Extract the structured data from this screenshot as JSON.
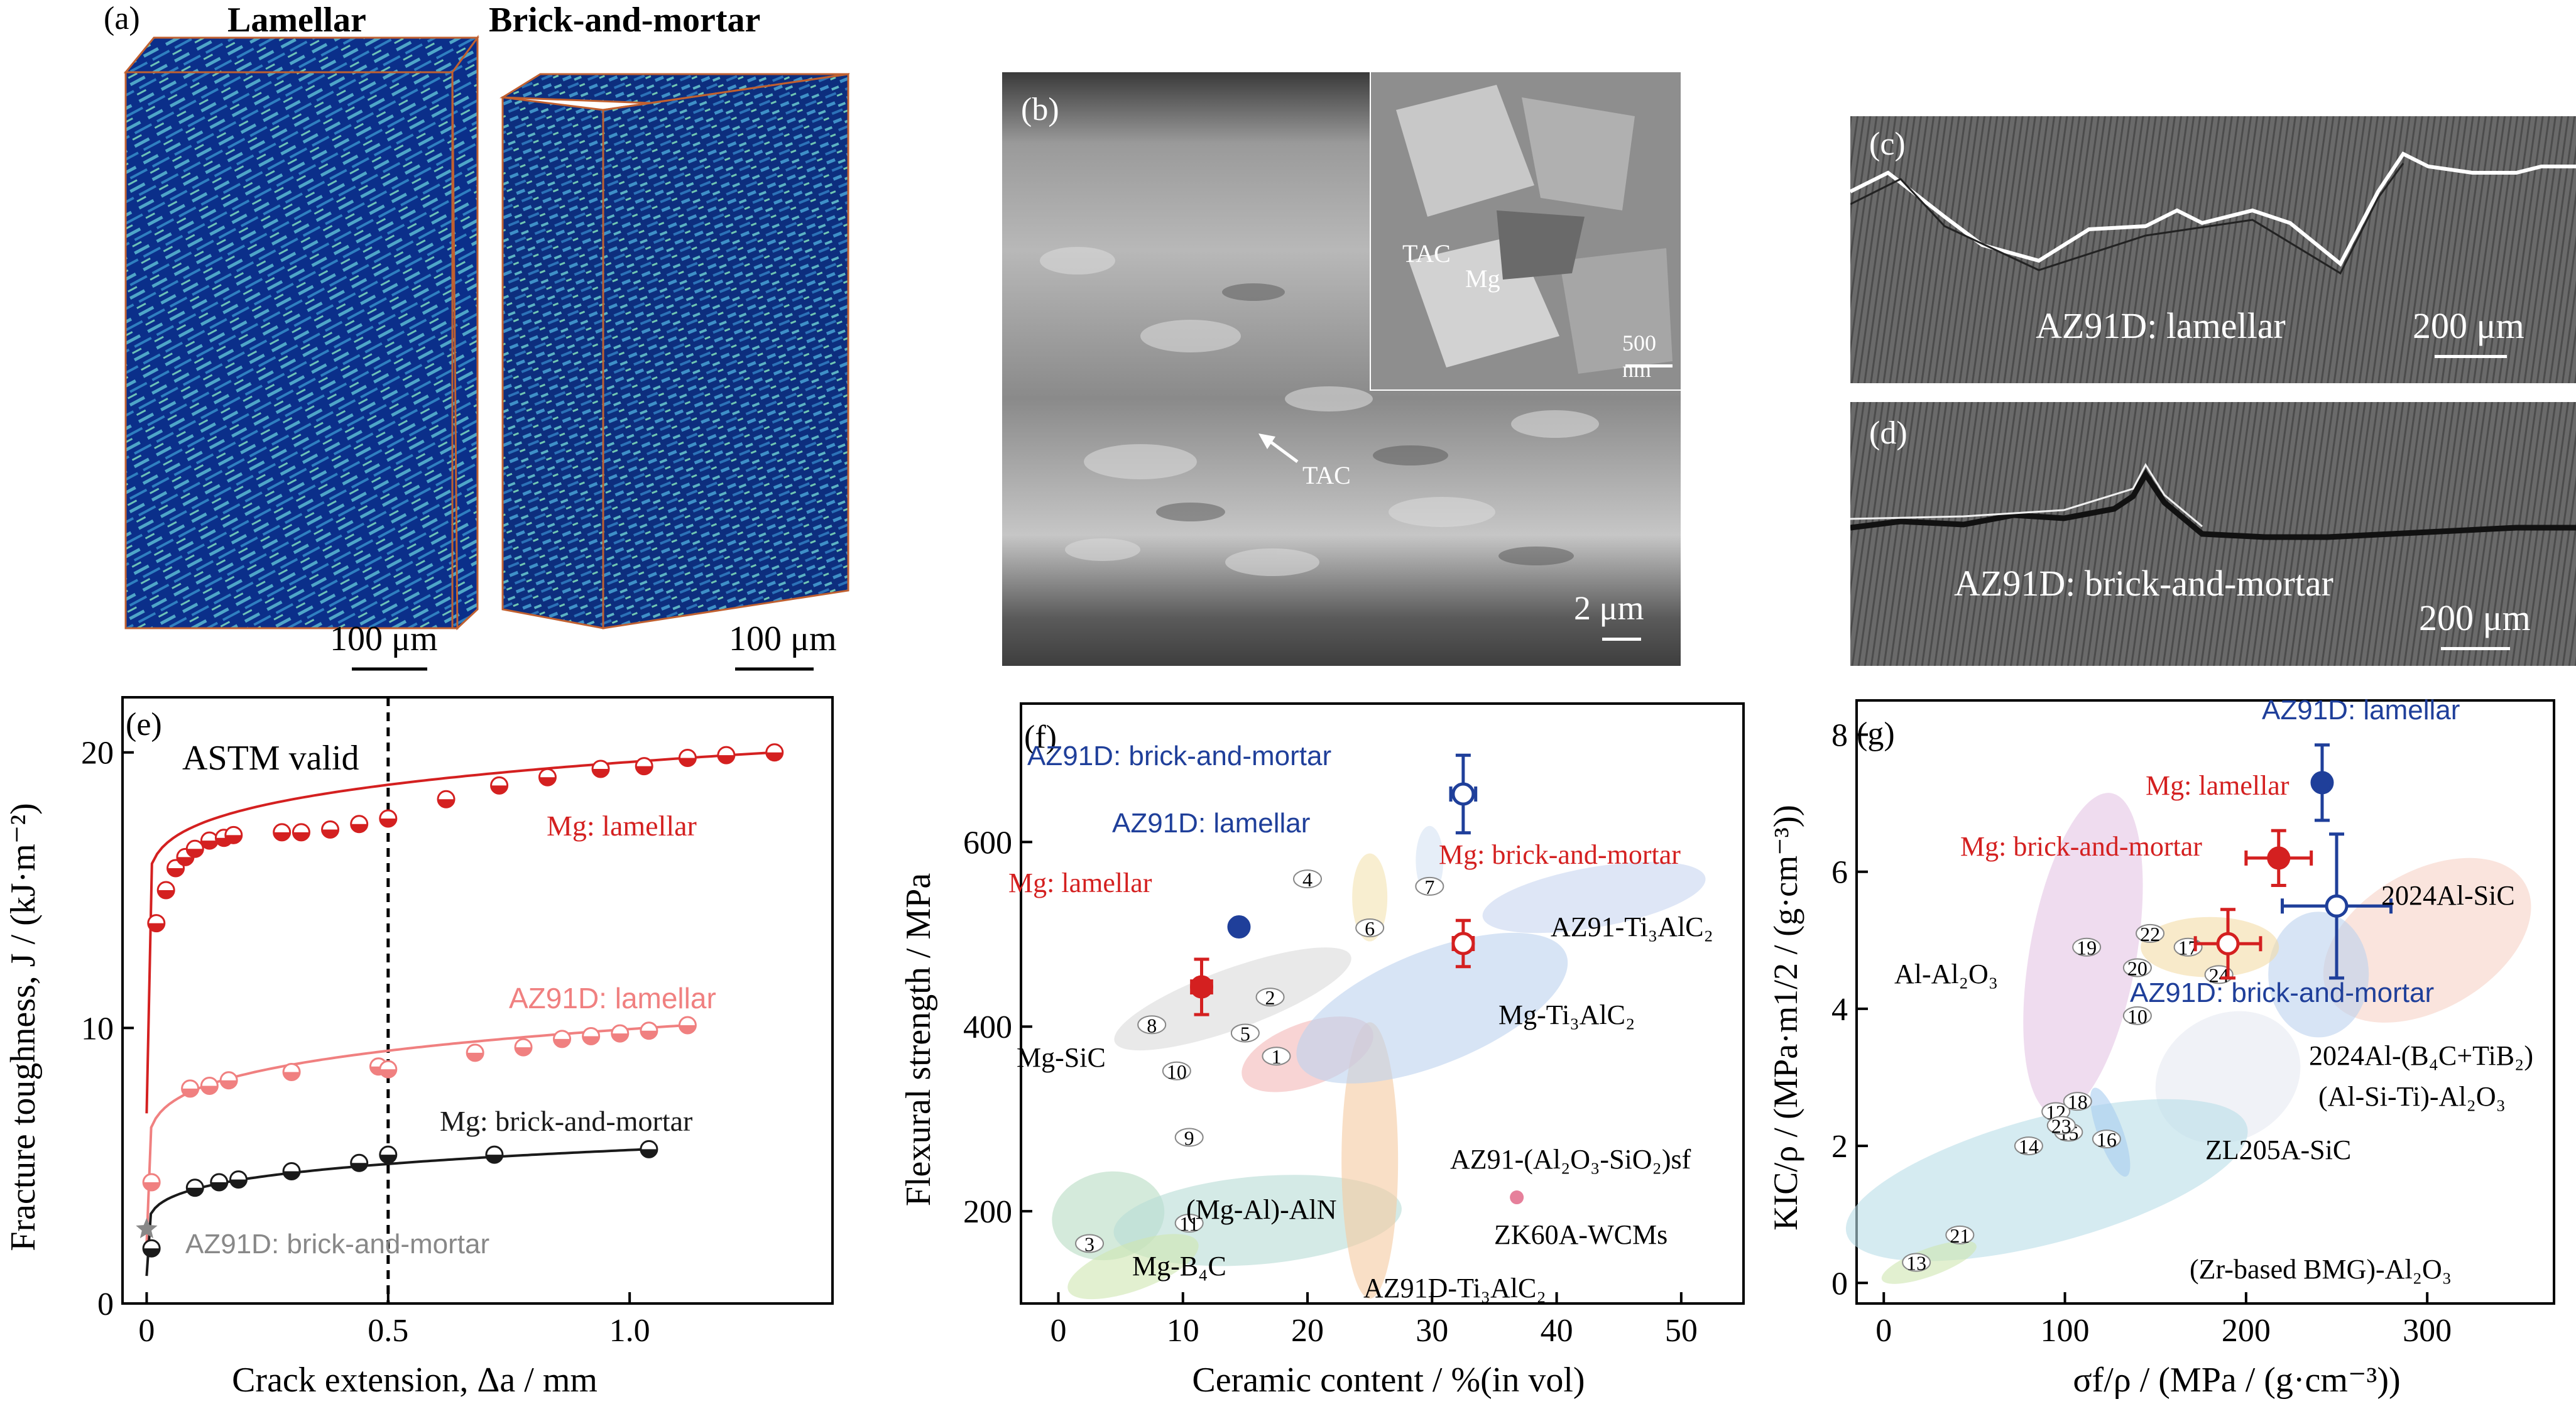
{
  "panel_a": {
    "label": "(a)",
    "left_title": "Lamellar",
    "right_title": "Brick-and-mortar",
    "scale_left": "100 μm",
    "scale_right": "100 μm"
  },
  "panel_b": {
    "label": "(b)",
    "inset_tac": "TAC",
    "inset_mg": "Mg",
    "inset_scale": "500 nm",
    "arrow_label": "TAC",
    "scale": "2 μm"
  },
  "panel_c": {
    "label": "(c)",
    "caption": "AZ91D: lamellar",
    "scale": "200 μm"
  },
  "panel_d": {
    "label": "(d)",
    "caption": "AZ91D: brick-and-mortar",
    "scale": "200 μm"
  },
  "colors": {
    "mg_red": "#d42020",
    "az91d_lamellar_pink": "#f08080",
    "black": "#1a1a1a",
    "grey": "#888888",
    "blue": "#1f3f9a"
  },
  "chart_data": [
    {
      "panel": "(e)",
      "type": "scatter",
      "xlabel": "Crack extension, Δa / mm",
      "ylabel": "Fracture toughness, J / (kJ·m⁻²)",
      "xlim": [
        -0.05,
        1.42
      ],
      "ylim": [
        0,
        22
      ],
      "xticks": [
        0,
        0.5,
        1.0
      ],
      "xtick_labels": [
        "0",
        "0.5",
        "1.0"
      ],
      "yticks": [
        0,
        10,
        20
      ],
      "annotation": "ASTM valid",
      "vline_x": 0.5,
      "series": [
        {
          "name": "Mg: lamellar",
          "color": "#d42020",
          "x": [
            0.02,
            0.04,
            0.06,
            0.08,
            0.1,
            0.13,
            0.16,
            0.18,
            0.28,
            0.32,
            0.38,
            0.44,
            0.5,
            0.62,
            0.73,
            0.83,
            0.94,
            1.03,
            1.12,
            1.2,
            1.3
          ],
          "y": [
            13.8,
            15.0,
            15.8,
            16.2,
            16.5,
            16.8,
            16.9,
            17.0,
            17.1,
            17.1,
            17.2,
            17.4,
            17.6,
            18.3,
            18.8,
            19.1,
            19.4,
            19.5,
            19.8,
            19.9,
            20.0
          ]
        },
        {
          "name": "AZ91D: lamellar",
          "color": "#f08080",
          "x": [
            0.01,
            0.09,
            0.13,
            0.17,
            0.3,
            0.48,
            0.5,
            0.68,
            0.78,
            0.86,
            0.92,
            0.98,
            1.04,
            1.12
          ],
          "y": [
            4.4,
            7.8,
            7.9,
            8.1,
            8.4,
            8.6,
            8.5,
            9.1,
            9.3,
            9.6,
            9.7,
            9.8,
            9.9,
            10.1
          ]
        },
        {
          "name": "Mg: brick-and-mortar",
          "color": "#1a1a1a",
          "x": [
            0.01,
            0.1,
            0.15,
            0.19,
            0.3,
            0.44,
            0.5,
            0.72,
            1.04
          ],
          "y": [
            2.0,
            4.2,
            4.4,
            4.5,
            4.8,
            5.1,
            5.4,
            5.4,
            5.6
          ]
        },
        {
          "name": "AZ91D: brick-and-mortar",
          "color": "#888888",
          "x": [
            0.0
          ],
          "y": [
            2.7
          ]
        }
      ]
    },
    {
      "panel": "(f)",
      "type": "scatter",
      "xlabel": "Ceramic content / %(in vol)",
      "ylabel": "Flexural strength / MPa",
      "xlim": [
        -3,
        55
      ],
      "ylim": [
        100,
        750
      ],
      "xticks": [
        0,
        10,
        20,
        30,
        40,
        50
      ],
      "yticks": [
        200,
        400,
        600
      ],
      "points": [
        {
          "name": "AZ91D: brick-and-mortar",
          "x": 32.5,
          "y": 652,
          "xerr": 1.0,
          "yerr": 42,
          "color": "#1f3f9a",
          "filled": false
        },
        {
          "name": "AZ91D: lamellar",
          "x": 14.5,
          "y": 508,
          "color": "#1f3f9a",
          "filled": true
        },
        {
          "name": "Mg: brick-and-mortar",
          "x": 32.5,
          "y": 490,
          "xerr": 0.8,
          "yerr": 25,
          "color": "#d42020",
          "filled": false
        },
        {
          "name": "Mg: lamellar",
          "x": 11.5,
          "y": 443,
          "xerr": 0.8,
          "yerr": 30,
          "color": "#d42020",
          "filled": true
        }
      ],
      "region_labels": [
        "Mg-SiC",
        "(Mg-Al)-AlN",
        "Mg-B₄C",
        "AZ91D-Ti₃AlC₂",
        "AZ91-(Al₂O₃-SiO₂)sf",
        "Mg-Ti₃AlC₂",
        "AZ91-Ti₃AlC₂",
        "ZK60A-WCMs"
      ],
      "ref_numbers": [
        "1",
        "2",
        "3",
        "4",
        "5",
        "6",
        "7",
        "8",
        "9",
        "10",
        "11"
      ]
    },
    {
      "panel": "(g)",
      "type": "scatter",
      "xlabel": "σf/ρ / (MPa / (g·cm⁻³))",
      "ylabel": "KIC/ρ / (MPa·m1/2 / (g·cm⁻³))",
      "xlim": [
        -15,
        370
      ],
      "ylim": [
        -0.3,
        8.5
      ],
      "xticks": [
        0,
        100,
        200,
        300
      ],
      "yticks": [
        0,
        2,
        4,
        6,
        8
      ],
      "points": [
        {
          "name": "AZ91D: lamellar",
          "x": 242,
          "y": 7.3,
          "yerr": 0.55,
          "color": "#1f3f9a",
          "filled": true
        },
        {
          "name": "Mg: lamellar",
          "x": 218,
          "y": 6.2,
          "xerr": 18,
          "yerr": 0.4,
          "color": "#d42020",
          "filled": true
        },
        {
          "name": "AZ91D: brick-and-mortar",
          "x": 250,
          "y": 5.5,
          "xerr": 30,
          "yerr": 1.05,
          "color": "#1f3f9a",
          "filled": false
        },
        {
          "name": "Mg: brick-and-mortar",
          "x": 190,
          "y": 4.95,
          "xerr": 18,
          "yerr": 0.5,
          "color": "#d42020",
          "filled": false
        }
      ],
      "region_labels": [
        "Al-Al₂O₃",
        "2024Al-SiC",
        "2024Al-(B₄C+TiB₂)",
        "(Al-Si-Ti)-Al₂O₃",
        "ZL205A-SiC",
        "(Zr-based BMG)-Al₂O₃"
      ],
      "ref_numbers": [
        "10",
        "12",
        "13",
        "14",
        "15",
        "16",
        "17",
        "18",
        "19",
        "20",
        "21",
        "22",
        "23",
        "24"
      ]
    }
  ]
}
